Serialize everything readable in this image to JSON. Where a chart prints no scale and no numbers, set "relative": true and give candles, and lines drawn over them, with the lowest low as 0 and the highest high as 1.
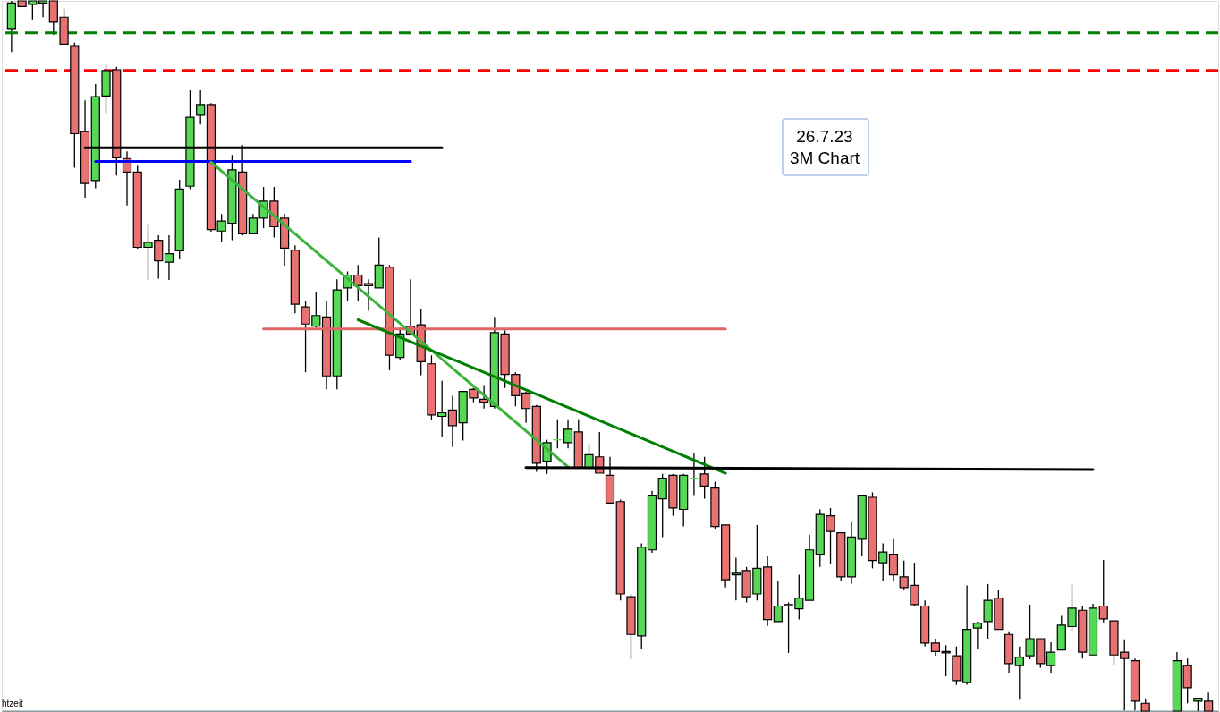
{
  "chart_data": {
    "type": "candlestick",
    "relative": true,
    "tick_labels": false,
    "grid": false,
    "annotations": [
      "26.7.23",
      "3M Chart",
      "htzeit"
    ],
    "categories": [
      null,
      null,
      null,
      null,
      null,
      null,
      null,
      null,
      null,
      null,
      null,
      null,
      null,
      null,
      null,
      null,
      null,
      null,
      null,
      null,
      null,
      null,
      null,
      null,
      null,
      null,
      null,
      null,
      null,
      null,
      null,
      null,
      null,
      null,
      null,
      null,
      null,
      null,
      null,
      null,
      null,
      null,
      null,
      null,
      null,
      null,
      null,
      null,
      null,
      null,
      null,
      null,
      null,
      null,
      null,
      null,
      null,
      null,
      null,
      null,
      null,
      null,
      null,
      null,
      null,
      null,
      null,
      null,
      null,
      null,
      null,
      null,
      null,
      null,
      null,
      null,
      null,
      null,
      null,
      null,
      null,
      null,
      null,
      null,
      null,
      null,
      null,
      null,
      null,
      null,
      null,
      null,
      null,
      null,
      null,
      null,
      null,
      null,
      null,
      null,
      null,
      null,
      null,
      null,
      null,
      null,
      null,
      null,
      null,
      null,
      null,
      null,
      null,
      null,
      null
    ],
    "colors": [
      "#55d855",
      "#e87272",
      "#55d855",
      "#55d855",
      "#e87272",
      "#e87272",
      "#e87272",
      "#e87272",
      "#55d855",
      "#55d855",
      "#e87272",
      "#e87272",
      "#e87272",
      "#55d855",
      "#e87272",
      "#55d855",
      "#55d855",
      "#55d855",
      "#55d855",
      "#e87272",
      "#55d855",
      "#55d855",
      "#e87272",
      "#55d855",
      "#55d855",
      "#e87272",
      "#e87272",
      "#e87272",
      "#e87272",
      "#55d855",
      "#e87272",
      "#55d855",
      "#55d855",
      "#e87272",
      "#e87272",
      "#55d855",
      "#e87272",
      "#55d855",
      "#e87272",
      "#e87272",
      "#e87272",
      "#55d855",
      "#e87272",
      "#55d855",
      "#e87272",
      "#e87272",
      "#55d855",
      "#e87272",
      "#e87272",
      "#e87272",
      "#e87272",
      "#55d855",
      "#55d855",
      "#55d855",
      "#e87272",
      "#55d855",
      "#e87272",
      "#e87272",
      "#e87272",
      "#e87272",
      "#55d855",
      "#55d855",
      "#55d855",
      "#e87272",
      "#55d855",
      "#55d855",
      "#e87272",
      "#e87272",
      "#e87272",
      "#55d855",
      "#e87272",
      "#55d855",
      "#e87272",
      "#55d855",
      "#e87272",
      "#55d855",
      "#55d855",
      "#55d855",
      "#e87272",
      "#e87272",
      "#55d855",
      "#55d855",
      "#e87272",
      "#55d855",
      "#e87272",
      "#e87272",
      "#e87272",
      "#e87272",
      "#e87272",
      "#e87272",
      "#e87272",
      "#55d855",
      "#55d855",
      "#55d855",
      "#e87272",
      "#e87272",
      "#55d855",
      "#55d855",
      "#e87272",
      "#55d855",
      "#55d855",
      "#55d855",
      "#e87272",
      "#55d855",
      "#e87272",
      "#e87272",
      "#e87272",
      "#e87272",
      "#e87272",
      null,
      null,
      "#55d855",
      "#e87272",
      "#55d855",
      "#e87272"
    ],
    "ohlc": [
      [
        0.961,
        1,
        0.928,
        0.997
      ],
      [
        1,
        1,
        0.992,
        0.992
      ],
      [
        0.995,
        1,
        0.974,
        1
      ],
      [
        0.997,
        1,
        0.977,
        1
      ],
      [
        1,
        1,
        0.952,
        0.97
      ],
      [
        0.977,
        0.989,
        0.939,
        0.939
      ],
      [
        0.937,
        0.941,
        0.765,
        0.813
      ],
      [
        0.816,
        0.86,
        0.723,
        0.743
      ],
      [
        0.747,
        0.883,
        0.736,
        0.865
      ],
      [
        0.866,
        0.91,
        0.842,
        0.902
      ],
      [
        0.903,
        0.907,
        0.754,
        0.779
      ],
      [
        0.778,
        0.788,
        0.712,
        0.759
      ],
      [
        0.759,
        0.768,
        0.651,
        0.653
      ],
      [
        0.653,
        0.686,
        0.607,
        0.66
      ],
      [
        0.663,
        0.67,
        0.609,
        0.634
      ],
      [
        0.632,
        0.67,
        0.607,
        0.644
      ],
      [
        0.648,
        0.748,
        0.636,
        0.735
      ],
      [
        0.739,
        0.874,
        0.735,
        0.836
      ],
      [
        0.839,
        0.874,
        0.826,
        0.854
      ],
      [
        0.854,
        0.856,
        0.675,
        0.678
      ],
      [
        0.676,
        0.7,
        0.661,
        0.69
      ],
      [
        0.687,
        0.783,
        0.663,
        0.762
      ],
      [
        0.759,
        0.797,
        0.67,
        0.672
      ],
      [
        0.672,
        0.7,
        0.672,
        0.694
      ],
      [
        0.694,
        0.738,
        0.68,
        0.718
      ],
      [
        0.718,
        0.738,
        0.667,
        0.682
      ],
      [
        0.694,
        0.7,
        0.627,
        0.652
      ],
      [
        0.649,
        0.656,
        0.56,
        0.573
      ],
      [
        0.569,
        0.578,
        0.477,
        0.545
      ],
      [
        0.542,
        0.59,
        0.54,
        0.557
      ],
      [
        0.555,
        0.578,
        0.453,
        0.472
      ],
      [
        0.472,
        0.608,
        0.453,
        0.593
      ],
      [
        0.596,
        0.619,
        0.578,
        0.614
      ],
      [
        0.614,
        0.628,
        0.578,
        0.599
      ],
      [
        0.602,
        0.608,
        0.564,
        0.599
      ],
      [
        0.596,
        0.667,
        0.596,
        0.628
      ],
      [
        0.625,
        0.628,
        0.48,
        0.501
      ],
      [
        0.498,
        0.54,
        0.494,
        0.531
      ],
      [
        0.542,
        0.608,
        0.531,
        0.531
      ],
      [
        0.544,
        0.566,
        0.473,
        0.492
      ],
      [
        0.489,
        0.501,
        0.41,
        0.417
      ],
      [
        0.415,
        0.465,
        0.386,
        0.42
      ],
      [
        0.424,
        0.444,
        0.372,
        0.402
      ],
      [
        0.406,
        0.45,
        0.381,
        0.45
      ],
      [
        0.453,
        0.455,
        0.435,
        0.441
      ],
      [
        0.439,
        0.459,
        0.426,
        0.435
      ],
      [
        0.429,
        0.555,
        0.426,
        0.533
      ],
      [
        0.531,
        0.536,
        0.455,
        0.474
      ],
      [
        0.474,
        0.477,
        0.429,
        0.444
      ],
      [
        0.448,
        0.45,
        0.406,
        0.426
      ],
      [
        0.429,
        0.431,
        0.337,
        0.349
      ],
      [
        0.352,
        0.382,
        0.334,
        0.378
      ],
      [
        0.382,
        0.411,
        0.37,
        0.382
      ],
      [
        0.378,
        0.411,
        0.37,
        0.397
      ],
      [
        0.393,
        0.411,
        0.342,
        0.342
      ],
      [
        0.342,
        0.376,
        0.342,
        0.361
      ],
      [
        0.358,
        0.393,
        0.335,
        0.335
      ],
      [
        0.332,
        0.358,
        0.293,
        0.293
      ],
      [
        0.295,
        0.298,
        0.156,
        0.165
      ],
      [
        0.161,
        0.165,
        0.073,
        0.108
      ],
      [
        0.106,
        0.236,
        0.087,
        0.231
      ],
      [
        0.227,
        0.31,
        0.223,
        0.304
      ],
      [
        0.299,
        0.334,
        0.245,
        0.328
      ],
      [
        0.332,
        0.334,
        0.275,
        0.286
      ],
      [
        0.284,
        0.334,
        0.26,
        0.332
      ],
      [
        0.328,
        0.364,
        0.304,
        0.328
      ],
      [
        0.334,
        0.358,
        0.299,
        0.317
      ],
      [
        0.314,
        0.323,
        0.257,
        0.26
      ],
      [
        0.262,
        0.262,
        0.174,
        0.185
      ],
      [
        0.192,
        0.216,
        0.156,
        0.194
      ],
      [
        0.198,
        0.203,
        0.153,
        0.161
      ],
      [
        0.165,
        0.262,
        0.156,
        0.201
      ],
      [
        0.203,
        0.218,
        0.12,
        0.129
      ],
      [
        0.126,
        0.183,
        0.126,
        0.148
      ],
      [
        0.15,
        0.153,
        0.082,
        0.148
      ],
      [
        0.144,
        0.192,
        0.129,
        0.159
      ],
      [
        0.156,
        0.248,
        0.156,
        0.227
      ],
      [
        0.221,
        0.284,
        0.203,
        0.277
      ],
      [
        0.275,
        0.286,
        0.208,
        0.253
      ],
      [
        0.251,
        0.251,
        0.183,
        0.189
      ],
      [
        0.189,
        0.266,
        0.179,
        0.245
      ],
      [
        0.242,
        0.304,
        0.218,
        0.304
      ],
      [
        0.301,
        0.308,
        0.201,
        0.212
      ],
      [
        0.209,
        0.236,
        0.183,
        0.224
      ],
      [
        0.221,
        0.242,
        0.183,
        0.192
      ],
      [
        0.189,
        0.212,
        0.17,
        0.174
      ],
      [
        0.177,
        0.209,
        0.148,
        0.15
      ],
      [
        0.148,
        0.156,
        0.091,
        0.096
      ],
      [
        0.096,
        0.102,
        0.078,
        0.084
      ],
      [
        0.084,
        0.093,
        0.049,
        0.082
      ],
      [
        0.078,
        0.091,
        0.037,
        0.043
      ],
      [
        0.04,
        0.177,
        0.037,
        0.115
      ],
      [
        0.117,
        0.126,
        0.087,
        0.124
      ],
      [
        0.126,
        0.179,
        0.102,
        0.156
      ],
      [
        0.159,
        0.17,
        0.115,
        0.115
      ],
      [
        0.108,
        0.111,
        0.054,
        0.067
      ],
      [
        0.064,
        0.091,
        0.016,
        0.076
      ],
      [
        0.078,
        0.15,
        0.073,
        0.102
      ],
      [
        0.102,
        0.102,
        0.061,
        0.067
      ],
      [
        0.064,
        0.097,
        0.054,
        0.083
      ],
      [
        0.086,
        0.134,
        0.086,
        0.121
      ],
      [
        0.119,
        0.178,
        0.112,
        0.145
      ],
      [
        0.142,
        0.148,
        0.074,
        0.083
      ],
      [
        0.079,
        0.151,
        0.079,
        0.145
      ],
      [
        0.148,
        0.213,
        0.125,
        0.13
      ],
      [
        0.127,
        0.127,
        0.064,
        0.079
      ],
      [
        0.083,
        0.101,
        0.001,
        0.074
      ],
      [
        0.071,
        0.074,
        0.001,
        0.014
      ],
      [
        0.011,
        0.018,
        0,
        0
      ],
      null,
      null,
      [
        0,
        0.083,
        0,
        0.071
      ],
      [
        0.064,
        0.074,
        0.011,
        0.033
      ],
      [
        0.014,
        0.018,
        0,
        0.018
      ],
      [
        0.014,
        0.026,
        0,
        0
      ]
    ],
    "series": [
      {
        "type": "line",
        "color": "#000000",
        "values": [
          null,
          null,
          null,
          null,
          null,
          null,
          null,
          0.793,
          null,
          null,
          null,
          null,
          null,
          null,
          null,
          null,
          null,
          null,
          null,
          null,
          null,
          null,
          null,
          null,
          null,
          null,
          null,
          null,
          null,
          null,
          null,
          null,
          null,
          null,
          null,
          null,
          null,
          null,
          null,
          null,
          null,
          0.793,
          null,
          null,
          null,
          null,
          null,
          null,
          null,
          null,
          null,
          null,
          null,
          null,
          null,
          null,
          null,
          null,
          null,
          null,
          null,
          null,
          null,
          null,
          null,
          null,
          null,
          null,
          null,
          null,
          null,
          null,
          null,
          null,
          null,
          null,
          null,
          null,
          null,
          null,
          null,
          null,
          null,
          null,
          null,
          null,
          null,
          null,
          null,
          null,
          null,
          null,
          null,
          null,
          null,
          null,
          null,
          null,
          null,
          null,
          null,
          null,
          null,
          null,
          null,
          null,
          null,
          null,
          null,
          null,
          null,
          null,
          null,
          null,
          null
        ]
      },
      {
        "type": "line",
        "color": "#0000ff",
        "values": [
          null,
          null,
          null,
          null,
          null,
          null,
          null,
          null,
          0.774,
          null,
          null,
          null,
          null,
          null,
          null,
          null,
          null,
          null,
          null,
          null,
          null,
          null,
          null,
          null,
          null,
          null,
          null,
          null,
          null,
          null,
          null,
          null,
          null,
          null,
          null,
          null,
          null,
          null,
          0.774,
          null,
          null,
          null,
          null,
          null,
          null,
          null,
          null,
          null,
          null,
          null,
          null,
          null,
          null,
          null,
          null,
          null,
          null,
          null,
          null,
          null,
          null,
          null,
          null,
          null,
          null,
          null,
          null,
          null,
          null,
          null,
          null,
          null,
          null,
          null,
          null,
          null,
          null,
          null,
          null,
          null,
          null,
          null,
          null,
          null,
          null,
          null,
          null,
          null,
          null,
          null,
          null,
          null,
          null,
          null,
          null,
          null,
          null,
          null,
          null,
          null,
          null,
          null,
          null,
          null,
          null,
          null,
          null,
          null,
          null,
          null,
          null,
          null,
          null,
          null,
          null
        ]
      },
      {
        "type": "line",
        "color": "#e06666",
        "values": [
          null,
          null,
          null,
          null,
          null,
          null,
          null,
          null,
          null,
          null,
          null,
          null,
          null,
          null,
          null,
          null,
          null,
          null,
          null,
          null,
          null,
          null,
          null,
          null,
          0.538,
          null,
          null,
          null,
          null,
          null,
          null,
          null,
          null,
          null,
          null,
          null,
          null,
          null,
          null,
          null,
          null,
          null,
          null,
          null,
          null,
          null,
          null,
          null,
          null,
          null,
          null,
          null,
          null,
          null,
          null,
          null,
          null,
          null,
          null,
          null,
          null,
          null,
          null,
          null,
          null,
          null,
          null,
          null,
          0.538,
          null,
          null,
          null,
          null,
          null,
          null,
          null,
          null,
          null,
          null,
          null,
          null,
          null,
          null,
          null,
          null,
          null,
          null,
          null,
          null,
          null,
          null,
          null,
          null,
          null,
          null,
          null,
          null,
          null,
          null,
          null,
          null,
          null,
          null,
          null,
          null,
          null,
          null,
          null,
          null,
          null,
          null,
          null,
          null,
          null,
          null
        ]
      },
      {
        "type": "line",
        "color": "#3cb43c",
        "values": [
          null,
          null,
          null,
          null,
          null,
          null,
          null,
          null,
          null,
          null,
          null,
          null,
          null,
          null,
          null,
          null,
          null,
          null,
          null,
          0.773,
          null,
          null,
          null,
          null,
          null,
          null,
          null,
          null,
          null,
          null,
          null,
          null,
          null,
          null,
          null,
          null,
          null,
          null,
          null,
          null,
          null,
          null,
          null,
          null,
          null,
          null,
          null,
          null,
          null,
          null,
          null,
          null,
          null,
          0.344,
          null,
          null,
          null,
          null,
          null,
          null,
          null,
          null,
          null,
          null,
          null,
          null,
          null,
          null,
          null,
          null,
          null,
          null,
          null,
          null,
          null,
          null,
          null,
          null,
          null,
          null,
          null,
          null,
          null,
          null,
          null,
          null,
          null,
          null,
          null,
          null,
          null,
          null,
          null,
          null,
          null,
          null,
          null,
          null,
          null,
          null,
          null,
          null,
          null,
          null,
          null,
          null,
          null,
          null,
          null,
          null,
          null,
          null,
          null,
          null,
          null
        ]
      },
      {
        "type": "line",
        "color": "#008000",
        "values": [
          null,
          null,
          null,
          null,
          null,
          null,
          null,
          null,
          null,
          null,
          null,
          null,
          null,
          null,
          null,
          null,
          null,
          null,
          null,
          null,
          null,
          null,
          null,
          null,
          null,
          null,
          null,
          null,
          null,
          null,
          null,
          null,
          null,
          0.551,
          null,
          null,
          null,
          null,
          null,
          null,
          null,
          null,
          null,
          null,
          null,
          null,
          null,
          null,
          null,
          null,
          null,
          null,
          null,
          null,
          null,
          null,
          null,
          null,
          null,
          null,
          null,
          null,
          null,
          null,
          null,
          null,
          null,
          null,
          0.335,
          null,
          null,
          null,
          null,
          null,
          null,
          null,
          null,
          null,
          null,
          null,
          null,
          null,
          null,
          null,
          null,
          null,
          null,
          null,
          null,
          null,
          null,
          null,
          null,
          null,
          null,
          null,
          null,
          null,
          null,
          null,
          null,
          null,
          null,
          null,
          null,
          null,
          null,
          null,
          null,
          null,
          null,
          null,
          null,
          null,
          null
        ]
      },
      {
        "type": "line",
        "color": "#000000",
        "values": [
          null,
          null,
          null,
          null,
          null,
          null,
          null,
          null,
          null,
          null,
          null,
          null,
          null,
          null,
          null,
          null,
          null,
          null,
          null,
          null,
          null,
          null,
          null,
          null,
          null,
          null,
          null,
          null,
          null,
          null,
          null,
          null,
          null,
          null,
          null,
          null,
          null,
          null,
          null,
          null,
          null,
          null,
          null,
          null,
          null,
          null,
          null,
          null,
          null,
          0.343,
          null,
          null,
          null,
          null,
          null,
          null,
          null,
          null,
          null,
          null,
          null,
          null,
          null,
          null,
          null,
          null,
          null,
          null,
          null,
          null,
          null,
          null,
          null,
          null,
          null,
          null,
          null,
          null,
          null,
          null,
          null,
          null,
          null,
          null,
          null,
          null,
          null,
          null,
          null,
          null,
          null,
          null,
          null,
          null,
          null,
          null,
          null,
          null,
          null,
          null,
          null,
          null,
          null,
          0.34,
          null,
          null,
          null,
          null,
          null,
          null,
          null,
          null,
          null,
          null,
          null
        ]
      }
    ],
    "marker": "none",
    "line_style": "solid",
    "ref_lines": [
      {
        "axis": "y",
        "value": 0.955,
        "color": "#008000",
        "line_style": "dashed"
      },
      {
        "axis": "y",
        "value": 0.902,
        "color": "#ff0000",
        "line_style": "dashed"
      }
    ]
  }
}
